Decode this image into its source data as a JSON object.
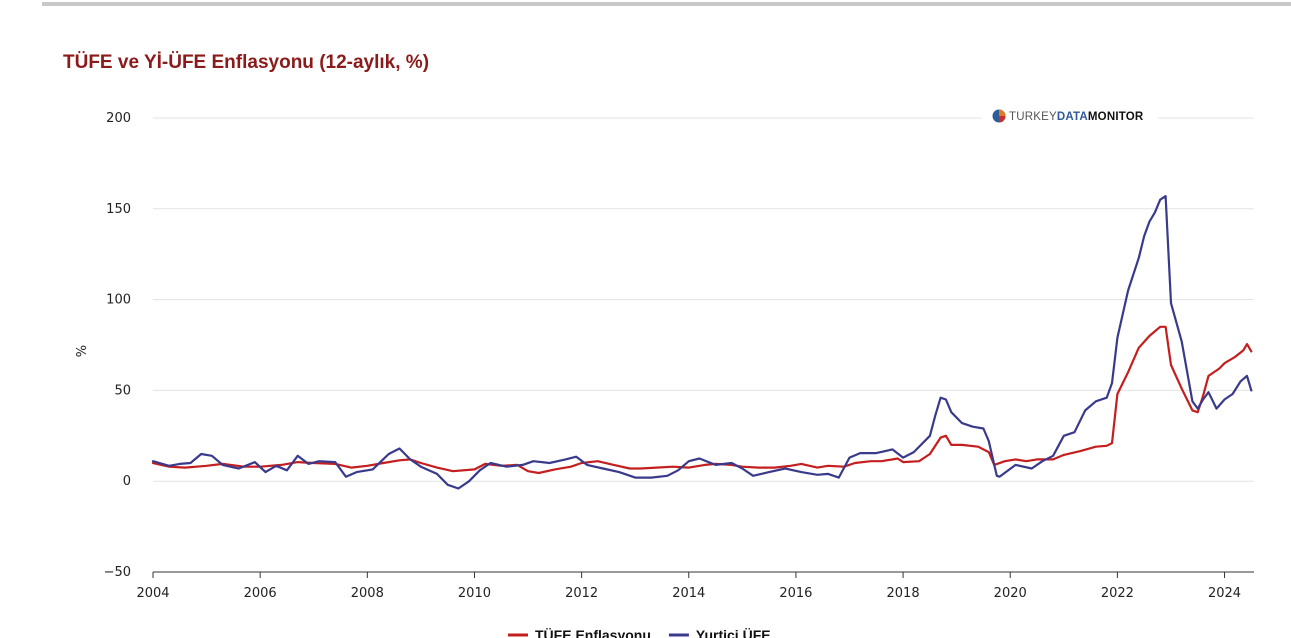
{
  "chart_data": {
    "type": "line",
    "title": "TÜFE ve Yİ-ÜFE Enflasyonu (12-aylık, %)",
    "ylabel": "%",
    "xlabel": "",
    "xlim": [
      2004,
      2024.55
    ],
    "ylim": [
      -50,
      200
    ],
    "y_ticks": [
      -50,
      0,
      50,
      100,
      150,
      200
    ],
    "x_ticks": [
      2004,
      2006,
      2008,
      2010,
      2012,
      2014,
      2016,
      2018,
      2020,
      2022,
      2024
    ],
    "grid": "horizontal",
    "legend_position": "bottom-center",
    "watermark": "TURKEYDATAMONITOR",
    "series": [
      {
        "name": "TÜFE Enflasyonu",
        "color": "#c41e1e",
        "points": [
          [
            2004.0,
            10
          ],
          [
            2004.3,
            8
          ],
          [
            2004.6,
            7.5
          ],
          [
            2005.0,
            8.5
          ],
          [
            2005.3,
            9.5
          ],
          [
            2005.7,
            8
          ],
          [
            2006.0,
            8
          ],
          [
            2006.4,
            9
          ],
          [
            2006.7,
            10.5
          ],
          [
            2007.0,
            10
          ],
          [
            2007.4,
            9.5
          ],
          [
            2007.7,
            7.5
          ],
          [
            2008.0,
            8.5
          ],
          [
            2008.3,
            10
          ],
          [
            2008.6,
            11.5
          ],
          [
            2008.8,
            12
          ],
          [
            2009.0,
            10
          ],
          [
            2009.3,
            7.5
          ],
          [
            2009.6,
            5.5
          ],
          [
            2010.0,
            6.5
          ],
          [
            2010.2,
            9.5
          ],
          [
            2010.5,
            8.5
          ],
          [
            2010.8,
            9
          ],
          [
            2011.0,
            5.5
          ],
          [
            2011.2,
            4.5
          ],
          [
            2011.5,
            6.5
          ],
          [
            2011.8,
            8
          ],
          [
            2012.0,
            10
          ],
          [
            2012.3,
            11
          ],
          [
            2012.6,
            9
          ],
          [
            2012.9,
            7
          ],
          [
            2013.1,
            7
          ],
          [
            2013.4,
            7.5
          ],
          [
            2013.7,
            8
          ],
          [
            2014.0,
            7.5
          ],
          [
            2014.3,
            9
          ],
          [
            2014.5,
            9.5
          ],
          [
            2014.8,
            9
          ],
          [
            2015.0,
            8
          ],
          [
            2015.3,
            7.5
          ],
          [
            2015.6,
            7.5
          ],
          [
            2015.9,
            8.5
          ],
          [
            2016.1,
            9.5
          ],
          [
            2016.4,
            7.5
          ],
          [
            2016.6,
            8.5
          ],
          [
            2016.9,
            8
          ],
          [
            2017.1,
            10
          ],
          [
            2017.4,
            11
          ],
          [
            2017.6,
            11
          ],
          [
            2017.9,
            12.5
          ],
          [
            2018.0,
            10.5
          ],
          [
            2018.3,
            11
          ],
          [
            2018.5,
            15
          ],
          [
            2018.7,
            24
          ],
          [
            2018.8,
            25
          ],
          [
            2018.9,
            20
          ],
          [
            2019.1,
            20
          ],
          [
            2019.4,
            19
          ],
          [
            2019.6,
            16
          ],
          [
            2019.7,
            9
          ],
          [
            2019.9,
            11
          ],
          [
            2020.1,
            12
          ],
          [
            2020.3,
            11
          ],
          [
            2020.5,
            12
          ],
          [
            2020.8,
            12
          ],
          [
            2021.0,
            14.5
          ],
          [
            2021.3,
            16.5
          ],
          [
            2021.6,
            19
          ],
          [
            2021.8,
            19.5
          ],
          [
            2021.9,
            21
          ],
          [
            2022.0,
            48
          ],
          [
            2022.2,
            60
          ],
          [
            2022.4,
            73.5
          ],
          [
            2022.6,
            80
          ],
          [
            2022.8,
            85
          ],
          [
            2022.9,
            85
          ],
          [
            2023.0,
            64
          ],
          [
            2023.2,
            51
          ],
          [
            2023.4,
            39
          ],
          [
            2023.5,
            38
          ],
          [
            2023.6,
            47
          ],
          [
            2023.7,
            58
          ],
          [
            2023.9,
            62
          ],
          [
            2024.0,
            65
          ],
          [
            2024.2,
            68.5
          ],
          [
            2024.35,
            72
          ],
          [
            2024.42,
            75.5
          ],
          [
            2024.5,
            71.5
          ]
        ]
      },
      {
        "name": "Yurtiçi ÜFE",
        "color": "#3a3a8c",
        "points": [
          [
            2004.0,
            11
          ],
          [
            2004.3,
            8.5
          ],
          [
            2004.5,
            9.5
          ],
          [
            2004.7,
            10
          ],
          [
            2004.9,
            15
          ],
          [
            2005.1,
            14
          ],
          [
            2005.3,
            9
          ],
          [
            2005.6,
            7
          ],
          [
            2005.9,
            10.5
          ],
          [
            2006.1,
            5
          ],
          [
            2006.3,
            8.5
          ],
          [
            2006.5,
            6
          ],
          [
            2006.7,
            14
          ],
          [
            2006.9,
            9.5
          ],
          [
            2007.1,
            11
          ],
          [
            2007.4,
            10.5
          ],
          [
            2007.6,
            2.5
          ],
          [
            2007.8,
            5
          ],
          [
            2008.1,
            6.5
          ],
          [
            2008.4,
            15
          ],
          [
            2008.6,
            18
          ],
          [
            2008.8,
            12
          ],
          [
            2009.0,
            8
          ],
          [
            2009.3,
            4
          ],
          [
            2009.5,
            -2
          ],
          [
            2009.7,
            -4
          ],
          [
            2009.9,
            0
          ],
          [
            2010.1,
            6
          ],
          [
            2010.3,
            10
          ],
          [
            2010.6,
            8
          ],
          [
            2010.9,
            9
          ],
          [
            2011.1,
            11
          ],
          [
            2011.4,
            10
          ],
          [
            2011.7,
            12
          ],
          [
            2011.9,
            13.5
          ],
          [
            2012.1,
            9
          ],
          [
            2012.4,
            7
          ],
          [
            2012.7,
            5
          ],
          [
            2013.0,
            2
          ],
          [
            2013.3,
            2
          ],
          [
            2013.6,
            3
          ],
          [
            2013.8,
            6
          ],
          [
            2014.0,
            11
          ],
          [
            2014.2,
            12.5
          ],
          [
            2014.5,
            9
          ],
          [
            2014.8,
            10
          ],
          [
            2015.0,
            7
          ],
          [
            2015.2,
            3
          ],
          [
            2015.5,
            5
          ],
          [
            2015.8,
            7
          ],
          [
            2016.1,
            5
          ],
          [
            2016.4,
            3.5
          ],
          [
            2016.6,
            4
          ],
          [
            2016.8,
            2
          ],
          [
            2017.0,
            13
          ],
          [
            2017.2,
            15.5
          ],
          [
            2017.5,
            15.5
          ],
          [
            2017.8,
            17.5
          ],
          [
            2018.0,
            13
          ],
          [
            2018.2,
            16
          ],
          [
            2018.5,
            25
          ],
          [
            2018.6,
            36
          ],
          [
            2018.7,
            46
          ],
          [
            2018.8,
            45
          ],
          [
            2018.9,
            38
          ],
          [
            2019.1,
            32
          ],
          [
            2019.3,
            30
          ],
          [
            2019.5,
            29
          ],
          [
            2019.6,
            22
          ],
          [
            2019.75,
            3
          ],
          [
            2019.8,
            2.5
          ],
          [
            2020.1,
            9
          ],
          [
            2020.4,
            7
          ],
          [
            2020.6,
            11
          ],
          [
            2020.8,
            14
          ],
          [
            2021.0,
            25
          ],
          [
            2021.2,
            27
          ],
          [
            2021.4,
            39
          ],
          [
            2021.6,
            44
          ],
          [
            2021.8,
            46
          ],
          [
            2021.9,
            54
          ],
          [
            2022.0,
            79
          ],
          [
            2022.2,
            105
          ],
          [
            2022.4,
            123
          ],
          [
            2022.5,
            135
          ],
          [
            2022.6,
            143
          ],
          [
            2022.7,
            148
          ],
          [
            2022.8,
            155
          ],
          [
            2022.9,
            157
          ],
          [
            2023.0,
            98
          ],
          [
            2023.2,
            77
          ],
          [
            2023.4,
            44
          ],
          [
            2023.5,
            40
          ],
          [
            2023.6,
            45
          ],
          [
            2023.7,
            49
          ],
          [
            2023.85,
            40
          ],
          [
            2024.0,
            45
          ],
          [
            2024.15,
            48
          ],
          [
            2024.3,
            55
          ],
          [
            2024.42,
            58
          ],
          [
            2024.5,
            50
          ]
        ]
      }
    ]
  }
}
